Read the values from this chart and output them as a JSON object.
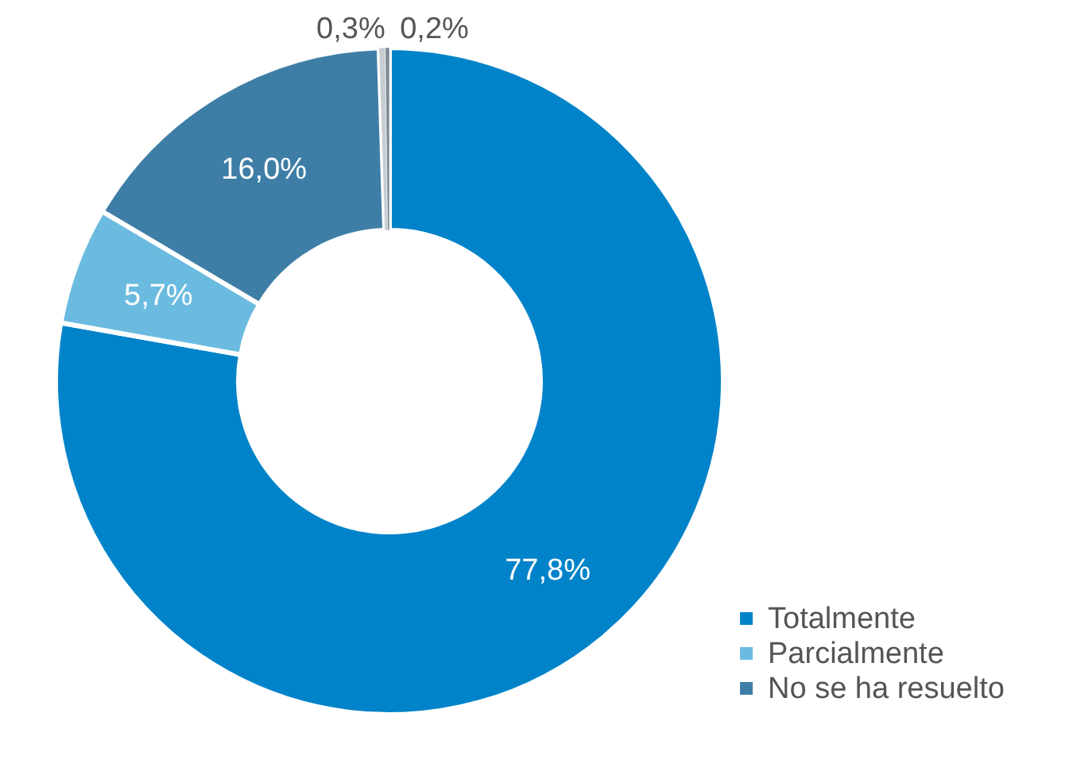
{
  "chart_data": {
    "type": "donut",
    "categories": [
      "Totalmente",
      "Parcialmente",
      "No se ha resuelto",
      null,
      null
    ],
    "values": [
      77.8,
      5.7,
      16.0,
      0.3,
      0.2
    ],
    "colors": [
      "#0083c9",
      "#6bbbe0",
      "#3e7ea6",
      "#c8cdd2",
      "#7b8a96"
    ],
    "value_labels": [
      "77,8%",
      "5,7%",
      "16,0%",
      "0,3%",
      "0,2%"
    ],
    "legend": "bottom right"
  }
}
